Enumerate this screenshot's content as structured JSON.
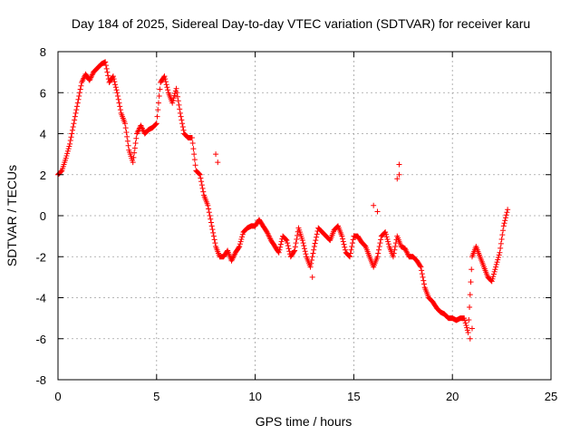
{
  "chart_data": {
    "type": "scatter",
    "title": "Day 184 of 2025, Sidereal Day-to-day VTEC variation (SDTVAR) for receiver karu",
    "xlabel": "GPS time / hours",
    "ylabel": "SDTVAR / TECUs",
    "xlim": [
      0,
      25
    ],
    "ylim": [
      -8,
      8
    ],
    "xticks": [
      0,
      5,
      10,
      15,
      20,
      25
    ],
    "yticks": [
      -8,
      -6,
      -4,
      -2,
      0,
      2,
      4,
      6,
      8
    ],
    "grid": true,
    "marker": "+",
    "color": "#ff0000",
    "series": [
      {
        "name": "SDTVAR",
        "x": [
          0.0,
          0.2,
          0.4,
          0.6,
          0.8,
          1.0,
          1.2,
          1.4,
          1.6,
          1.8,
          2.0,
          2.2,
          2.4,
          2.6,
          2.8,
          3.0,
          3.2,
          3.4,
          3.6,
          3.8,
          4.0,
          4.2,
          4.4,
          4.6,
          4.8,
          5.0,
          5.2,
          5.4,
          5.6,
          5.8,
          6.0,
          6.2,
          6.4,
          6.6,
          6.8,
          7.0,
          7.2,
          7.4,
          7.6,
          7.8,
          8.0,
          8.2,
          8.4,
          8.6,
          8.8,
          9.0,
          9.2,
          9.4,
          9.6,
          9.8,
          10.0,
          10.2,
          10.4,
          10.6,
          10.8,
          11.0,
          11.2,
          11.4,
          11.6,
          11.8,
          12.0,
          12.2,
          12.4,
          12.6,
          12.8,
          13.0,
          13.2,
          13.4,
          13.6,
          13.8,
          14.0,
          14.2,
          14.4,
          14.6,
          14.8,
          15.0,
          15.2,
          15.4,
          15.6,
          15.8,
          16.0,
          16.2,
          16.4,
          16.6,
          16.8,
          17.0,
          17.2,
          17.4,
          17.6,
          17.8,
          18.0,
          18.2,
          18.4,
          18.6,
          18.8,
          19.0,
          19.2,
          19.4,
          19.6,
          19.8,
          20.0,
          20.2,
          20.4,
          20.6,
          20.8,
          21.0,
          21.2,
          21.4,
          21.6,
          21.8,
          22.0,
          22.2,
          22.4,
          22.6,
          22.8
        ],
        "y": [
          2.0,
          2.2,
          2.8,
          3.5,
          4.5,
          5.5,
          6.5,
          6.9,
          6.6,
          7.0,
          7.2,
          7.4,
          7.5,
          6.5,
          6.8,
          6.0,
          5.0,
          4.5,
          3.2,
          2.6,
          4.0,
          4.4,
          4.0,
          4.2,
          4.3,
          4.5,
          6.5,
          6.8,
          6.0,
          5.5,
          6.2,
          5.0,
          4.0,
          3.8,
          3.8,
          2.2,
          2.0,
          1.0,
          0.5,
          -0.5,
          -1.5,
          -2.0,
          -2.0,
          -1.7,
          -2.2,
          -1.8,
          -1.5,
          -0.8,
          -0.6,
          -0.5,
          -0.5,
          -0.2,
          -0.5,
          -0.8,
          -1.2,
          -1.5,
          -1.8,
          -1.0,
          -1.2,
          -2.0,
          -1.7,
          -0.6,
          -1.2,
          -2.0,
          -2.5,
          -1.5,
          -0.6,
          -0.8,
          -1.0,
          -1.2,
          -0.7,
          -0.5,
          -1.0,
          -1.8,
          -2.0,
          -1.0,
          -1.0,
          -1.3,
          -1.5,
          -2.0,
          -2.5,
          -2.0,
          -1.0,
          -0.8,
          -1.5,
          -2.0,
          -1.0,
          -1.5,
          -1.6,
          -2.0,
          -2.0,
          -2.2,
          -2.5,
          -3.5,
          -4.0,
          -4.2,
          -4.5,
          -4.7,
          -4.8,
          -5.0,
          -5.0,
          -5.1,
          -5.0,
          -5.0,
          -5.7,
          -2.0,
          -1.5,
          -2.0,
          -2.5,
          -3.0,
          -3.2,
          -2.5,
          -1.8,
          -0.5,
          0.3
        ],
        "extra_points": {
          "x": [
            17.3,
            17.3,
            17.2,
            20.9,
            21.0,
            16.0,
            16.2,
            8.0,
            8.1,
            12.9
          ],
          "y": [
            2.5,
            2.0,
            1.8,
            -6.0,
            -5.5,
            0.5,
            0.2,
            3.0,
            2.6,
            -3.0
          ]
        }
      }
    ]
  }
}
